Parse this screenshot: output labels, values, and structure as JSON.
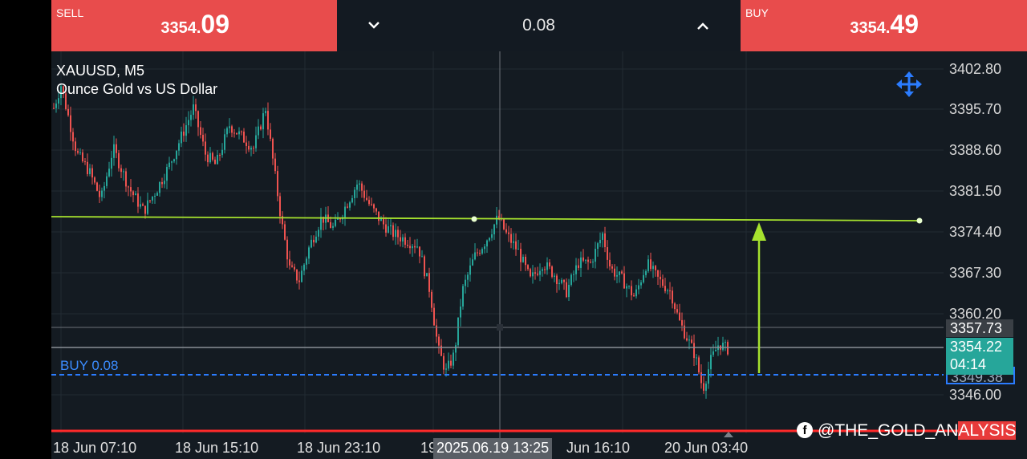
{
  "trade_bar": {
    "sell": {
      "label": "SELL",
      "price_main": "3354.",
      "price_big": "09"
    },
    "buy": {
      "label": "BUY",
      "price_main": "3354.",
      "price_big": "49"
    },
    "volume": "0.08"
  },
  "chart": {
    "symbol": "XAUUSD, M5",
    "description": "Ounce Gold vs US Dollar",
    "price_axis": [
      "3402.80",
      "3395.70",
      "3388.60",
      "3381.50",
      "3374.40",
      "3367.30",
      "3360.20",
      "3346.00"
    ],
    "crosshair_price": "3357.73",
    "bid_price": "3354.22",
    "countdown": "04:14",
    "buy_order_price": "3349.38",
    "buy_line_label": "BUY 0.08",
    "time_axis": [
      "18 Jun 07:10",
      "18 Jun 15:10",
      "18 Jun 23:10",
      "19",
      "Jun 16:10",
      "20 Jun 03:40"
    ],
    "crosshair_time": "2025.06.19 13:25",
    "watermark_prefix": "@THE_GOLD_AN",
    "watermark_suffix": "ALYSIS"
  },
  "colors": {
    "bull": "#26a69a",
    "bear": "#ef5350",
    "trendline": "#a6e22e",
    "buy_line": "#2b7cff",
    "sell_bg": "#e84c4c"
  },
  "icons": [
    "chevron-down-icon",
    "chevron-up-icon",
    "move-icon",
    "facebook-icon"
  ]
}
